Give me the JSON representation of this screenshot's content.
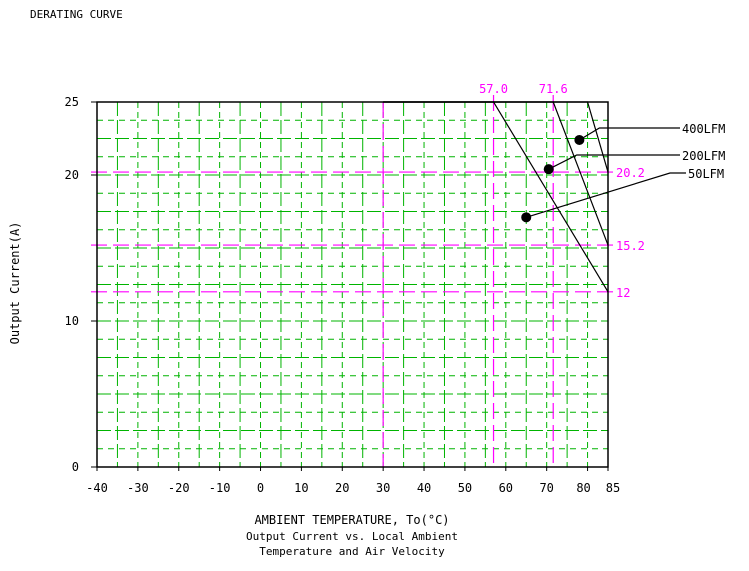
{
  "page_title": "DERATING CURVE",
  "chart_data": {
    "type": "line",
    "title": "DERATING CURVE",
    "xlabel": "AMBIENT TEMPERATURE, To(°C)",
    "ylabel": "Output Current(A)",
    "caption_lines": [
      "Output Current vs. Local Ambient",
      "Temperature and Air Velocity"
    ],
    "xlim": [
      -40,
      85
    ],
    "ylim": [
      0,
      25
    ],
    "x_ticks": [
      {
        "value": -40,
        "label": "-40"
      },
      {
        "value": -30,
        "label": "-30"
      },
      {
        "value": -20,
        "label": "-20"
      },
      {
        "value": -10,
        "label": "-10"
      },
      {
        "value": 0,
        "label": "0"
      },
      {
        "value": 10,
        "label": "10"
      },
      {
        "value": 20,
        "label": "20"
      },
      {
        "value": 30,
        "label": "30"
      },
      {
        "value": 40,
        "label": "40"
      },
      {
        "value": 50,
        "label": "50"
      },
      {
        "value": 60,
        "label": "60"
      },
      {
        "value": 70,
        "label": "70"
      },
      {
        "value": 80,
        "label": "80"
      },
      {
        "value": 85,
        "label": "85"
      }
    ],
    "y_ticks": [
      {
        "value": 0,
        "label": "0"
      },
      {
        "value": 10,
        "label": "10"
      },
      {
        "value": 20,
        "label": "20"
      },
      {
        "value": 25,
        "label": "25"
      }
    ],
    "series": [
      {
        "name": "400LFM",
        "x": [
          30,
          80,
          85
        ],
        "y": [
          25,
          25,
          20.2
        ],
        "marker": [
          78,
          22.4
        ]
      },
      {
        "name": "200LFM",
        "x": [
          30,
          71.6,
          85
        ],
        "y": [
          25,
          25,
          15.2
        ],
        "marker": [
          70.5,
          20.4
        ]
      },
      {
        "name": "50LFM",
        "x": [
          30,
          57.0,
          85
        ],
        "y": [
          25,
          25,
          12
        ],
        "marker": [
          65,
          17.1
        ]
      }
    ],
    "annotations": [
      {
        "label": "57.0",
        "axis": "x",
        "value": 57.0
      },
      {
        "label": "71.6",
        "axis": "x",
        "value": 71.6
      },
      {
        "label": "20.2",
        "axis": "y",
        "value": 20.2
      },
      {
        "label": "15.2",
        "axis": "y",
        "value": 15.2
      },
      {
        "label": "12",
        "axis": "y",
        "value": 12
      }
    ],
    "colors": {
      "grid": "#00b400",
      "reference": "#ff00ff",
      "curve": "#000000"
    }
  }
}
